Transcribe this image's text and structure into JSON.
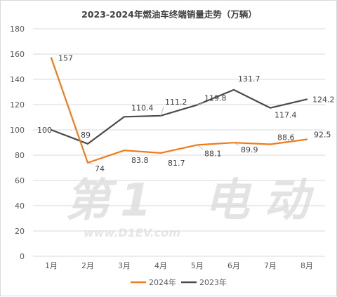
{
  "chart_data": {
    "type": "line",
    "title": "2023-2024年燃油车终端销量走势（万辆）",
    "categories": [
      "1月",
      "2月",
      "3月",
      "4月",
      "5月",
      "6月",
      "7月",
      "8月"
    ],
    "ylim": [
      0,
      180
    ],
    "yticks": [
      "0",
      "20",
      "40",
      "60",
      "80",
      "100",
      "120",
      "140",
      "160",
      "180"
    ],
    "grid": "horizontal",
    "legend_position": "bottom",
    "series": [
      {
        "name": "2024年",
        "color": "#f07a1a",
        "values": [
          157,
          74,
          83.8,
          81.7,
          88.1,
          89.9,
          88.6,
          92.5
        ]
      },
      {
        "name": "2023年",
        "color": "#4a4a4a",
        "values": [
          100,
          89,
          110.4,
          111.2,
          119.8,
          131.7,
          117.4,
          124.2
        ]
      }
    ]
  },
  "watermark": {
    "text": "第1电动",
    "url": "www.D1EV.com"
  }
}
